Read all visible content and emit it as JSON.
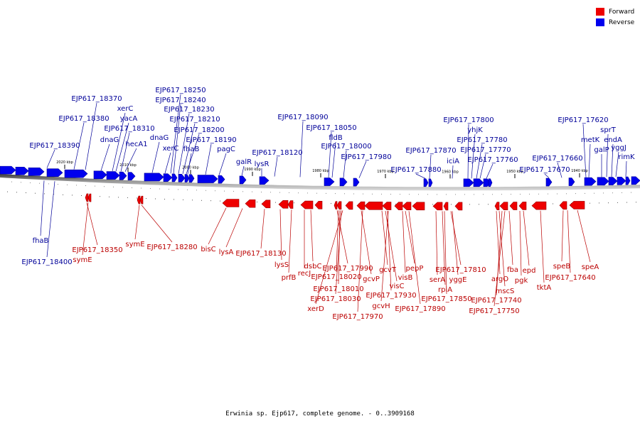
{
  "colors": {
    "forward": "#ee0000",
    "reverse": "#0000ee",
    "backbone_dark": "#444444",
    "backbone_light": "#c8c8c8",
    "label_forward": "#bb0000",
    "label_reverse": "#000099"
  },
  "legend": [
    {
      "label": "Forward",
      "color": "#ee0000"
    },
    {
      "label": "Reverse",
      "color": "#0000ee"
    }
  ],
  "caption": "Erwinia sp. Ejp617, complete genome. - 0..3909168",
  "ticks": [
    "2020 kbp",
    "2010 kbp",
    "2000 kbp",
    "1990 kbp",
    "1980 kbp",
    "1970 kbp",
    "1960 kbp",
    "1950 kbp",
    "1940 kbp"
  ],
  "reverse_labels": [
    "EJP617_18390",
    "EJP617_18380",
    "EJP617_18370",
    "dnaG",
    "xerC",
    "yacA",
    "EJP617_18310",
    "hecA1",
    "dnaG",
    "xerC",
    "EJP617_18250",
    "EJP617_18240",
    "EJP617_18230",
    "EJP617_18210",
    "EJP617_18200",
    "fhaB",
    "EJP617_18190",
    "pagC",
    "galR",
    "lysR",
    "EJP617_18120",
    "EJP617_18090",
    "EJP617_18050",
    "fldB",
    "EJP617_18000",
    "EJP617_17980",
    "EJP617_17880",
    "EJP617_17870",
    "iciA",
    "EJP617_17800",
    "yhjK",
    "EJP617_17780",
    "EJP617_17770",
    "EJP617_17760",
    "EJP617_17670",
    "EJP617_17660",
    "EJP617_17620",
    "metK",
    "galP",
    "sprT",
    "endA",
    "yggJ",
    "rimK",
    "fhaB",
    "EJP617_18400"
  ],
  "forward_labels": [
    "EJP617_18350",
    "symE",
    "symE",
    "EJP617_18280",
    "bisC",
    "lysA",
    "EJP617_18130",
    "lysS",
    "prfB",
    "recJ",
    "dsbC",
    "EJP617_17990",
    "EJP617_18020",
    "EJP617_18010",
    "EJP617_18030",
    "xerD",
    "gcvP",
    "EJP617_17970",
    "gcvT",
    "visC",
    "EJP617_17930",
    "gcvH",
    "visB",
    "pepP",
    "EJP617_17890",
    "serA",
    "rpiA",
    "EJP617_17850",
    "EJP617_17810",
    "yggE",
    "argO",
    "mscS",
    "EJP617_17740",
    "EJP617_17750",
    "fba",
    "pgk",
    "epd",
    "tktA",
    "speB",
    "EJP617_17640",
    "speA"
  ]
}
